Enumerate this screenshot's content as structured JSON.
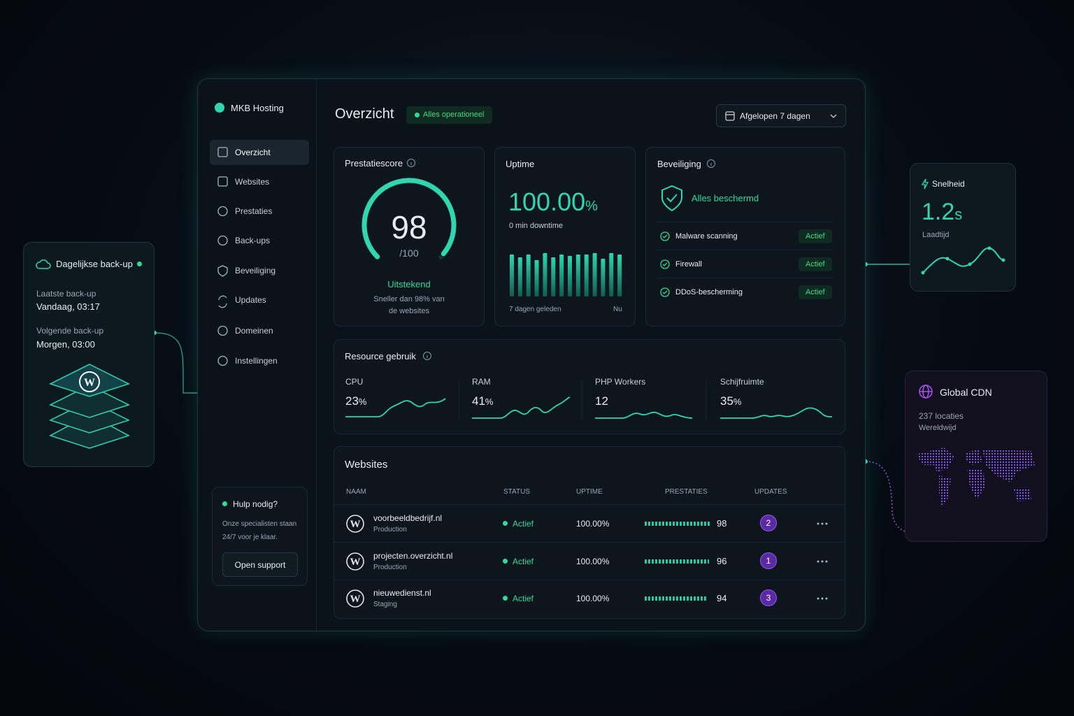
{
  "sidebar": {
    "brand": "MKB Hosting",
    "nav": [
      "Overzicht",
      "Websites",
      "Prestaties",
      "Back-ups",
      "Beveiliging",
      "Updates",
      "Domeinen",
      "Instellingen"
    ],
    "help": {
      "title": "Hulp nodig?",
      "text": "Onze specialisten staan 24/7 voor je klaar.",
      "button": "Open support"
    }
  },
  "header": {
    "title": "Overzicht",
    "status": "Alles operationeel",
    "range": "Afgelopen 7 dagen"
  },
  "performance": {
    "title": "Prestatiescore",
    "score": 98,
    "max": {
      "value": 100,
      "label": "/100"
    },
    "rating": "Uitstekend",
    "note": "Sneller dan 98% van de websites"
  },
  "uptime": {
    "title": "Uptime",
    "value": "100.00",
    "unit": "%",
    "downtime": "0 min downtime",
    "bars": [
      60,
      56,
      60,
      52,
      62,
      56,
      60,
      58,
      60,
      60,
      62,
      54,
      62,
      60
    ],
    "start_label": "7 dagen geleden",
    "end_label": "Nu"
  },
  "security": {
    "title": "Beveiliging",
    "status": "Alles beschermd",
    "items": [
      {
        "name": "Malware scanning",
        "status": "Actief"
      },
      {
        "name": "Firewall",
        "status": "Actief"
      },
      {
        "name": "DDoS-bescherming",
        "status": "Actief"
      }
    ]
  },
  "resources": {
    "title": "Resource gebruik",
    "items": [
      {
        "name": "CPU",
        "value": "23",
        "unit": "%"
      },
      {
        "name": "RAM",
        "value": "41",
        "unit": "%"
      },
      {
        "name": "PHP Workers",
        "value": "12"
      },
      {
        "name": "Schijfruimte",
        "value": "35",
        "unit": "%"
      }
    ]
  },
  "websites": {
    "title": "Websites",
    "columns": [
      "NAAM",
      "STATUS",
      "UPTIME",
      "PRESTATIES",
      "UPDATES"
    ],
    "rows": [
      {
        "name": "voorbeeldbedrijf.nl",
        "env": "Production",
        "status": "Actief",
        "uptime": "100.00%",
        "performance": 98,
        "updates": 2
      },
      {
        "name": "projecten.overzicht.nl",
        "env": "Production",
        "status": "Actief",
        "uptime": "100.00%",
        "performance": 96,
        "updates": 1
      },
      {
        "name": "nieuwedienst.nl",
        "env": "Staging",
        "status": "Actief",
        "uptime": "100.00%",
        "performance": 94,
        "updates": 3
      }
    ]
  },
  "backup_card": {
    "title": "Dagelijkse back-up",
    "last_label": "Laatste back-up",
    "last": "Vandaag, 03:17",
    "next_label": "Volgende back-up",
    "next": "Morgen, 03:00"
  },
  "speed_card": {
    "title": "Snelheid",
    "value": "1.2",
    "unit": "s",
    "label": "Laadtijd"
  },
  "cdn_card": {
    "title": "Global CDN",
    "locations": "237 locaties",
    "scope": "Wereldwijd"
  }
}
